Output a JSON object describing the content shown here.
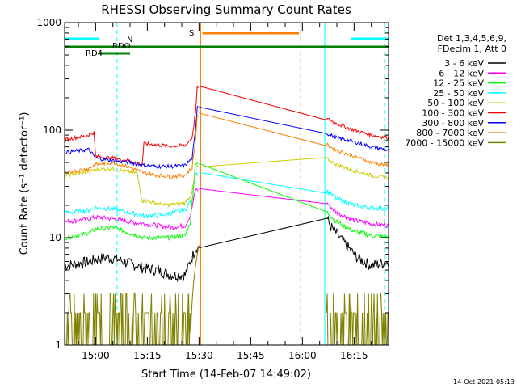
{
  "chart_data": {
    "type": "line",
    "title": "RHESSI Observing Summary Count Rates",
    "xlabel": "Start Time (14-Feb-07 14:49:02)",
    "ylabel": "Count Rate (s⁻¹ detector⁻¹)",
    "yscale": "log",
    "ylim": [
      1,
      1000
    ],
    "xlim_min": [
      -9,
      85
    ],
    "y_ticks": [
      {
        "value": 1,
        "label": "1"
      },
      {
        "value": 10,
        "label": "10"
      },
      {
        "value": 100,
        "label": "100"
      },
      {
        "value": 1000,
        "label": "1000"
      }
    ],
    "x_ticks": [
      {
        "value": 0,
        "label": "15:00"
      },
      {
        "value": 15,
        "label": "15:15"
      },
      {
        "value": 30,
        "label": "15:30"
      },
      {
        "value": 45,
        "label": "15:45"
      },
      {
        "value": 60,
        "label": "16:00"
      },
      {
        "value": 75,
        "label": "16:15"
      }
    ],
    "legend_header": [
      "Det 1,3,4,5,6,9,",
      "FDecim 1, Att 0"
    ],
    "data_gap_min": [
      30,
      67
    ],
    "series": [
      {
        "name": "3 - 6 keV",
        "color": "#000000",
        "noise": 0.12,
        "x": [
          -9,
          -2,
          2,
          5,
          8,
          12,
          14,
          18,
          22,
          26,
          27.5,
          29,
          66.5,
          68,
          72,
          76,
          80,
          85
        ],
        "y": [
          5.5,
          6,
          6.5,
          6.5,
          6,
          5.5,
          5.2,
          5,
          4.5,
          4.5,
          6,
          8,
          17,
          13,
          9,
          6.5,
          5.5,
          6
        ]
      },
      {
        "name": "6 - 12 keV",
        "color": "#ff00ff",
        "noise": 0.05,
        "x": [
          -9,
          -2,
          0,
          5,
          10,
          14,
          18,
          22,
          26,
          27.5,
          29,
          66.5,
          70,
          75,
          80,
          85
        ],
        "y": [
          14,
          15,
          15.5,
          15,
          14,
          13.5,
          13,
          12.5,
          13,
          16,
          28,
          22,
          17,
          14.5,
          13.5,
          13
        ]
      },
      {
        "name": "12 - 25 keV",
        "color": "#00ff00",
        "noise": 0.05,
        "x": [
          -9,
          -2,
          0,
          5,
          10,
          14,
          18,
          22,
          26,
          27.5,
          29,
          66.5,
          70,
          75,
          80,
          85
        ],
        "y": [
          10,
          11,
          12,
          12.5,
          11,
          10,
          10,
          10,
          10.5,
          14,
          50,
          18,
          14,
          11.5,
          10.5,
          10
        ]
      },
      {
        "name": "25 - 50 keV",
        "color": "#00ffff",
        "noise": 0.05,
        "x": [
          -9,
          -2,
          0,
          5,
          10,
          14,
          18,
          22,
          26,
          27.5,
          29,
          66.5,
          70,
          75,
          80,
          85
        ],
        "y": [
          17,
          18,
          19,
          18.5,
          17,
          16,
          16,
          17,
          18,
          22,
          40,
          28,
          23,
          20,
          19,
          18.5
        ]
      },
      {
        "name": "50 - 100 keV",
        "color": "#cccc00",
        "noise": 0.04,
        "x": [
          -9,
          -4,
          0,
          4,
          8,
          12,
          13.5,
          15,
          20,
          26,
          28,
          29,
          66.5,
          70,
          75,
          80,
          85
        ],
        "y": [
          38,
          40,
          43,
          44,
          42,
          40,
          22,
          22,
          20,
          21,
          26,
          45,
          55,
          48,
          42,
          38,
          36
        ]
      },
      {
        "name": "100 - 300 keV",
        "color": "#ff0000",
        "noise": 0.04,
        "x": [
          -9,
          -3,
          -0.5,
          0,
          5,
          10,
          13.5,
          14,
          18,
          22,
          26,
          28,
          29,
          29.5,
          66.5,
          70,
          75,
          80,
          85
        ],
        "y": [
          82,
          88,
          95,
          57,
          55,
          52,
          48,
          75,
          73,
          71,
          72,
          85,
          150,
          250,
          130,
          115,
          100,
          90,
          85
        ]
      },
      {
        "name": "300 - 800 keV",
        "color": "#0000ff",
        "noise": 0.04,
        "x": [
          -9,
          -2,
          0,
          5,
          10,
          14,
          18,
          22,
          26,
          28,
          29,
          29.5,
          66.5,
          70,
          75,
          80,
          85
        ],
        "y": [
          62,
          66,
          55,
          52,
          50,
          47,
          46,
          46,
          47,
          55,
          100,
          170,
          95,
          85,
          78,
          70,
          65
        ]
      },
      {
        "name": "800 - 7000 keV",
        "color": "#ff8000",
        "noise": 0.04,
        "x": [
          -9,
          -2,
          0,
          5,
          10,
          14,
          18,
          22,
          26,
          28,
          29,
          29.5,
          66.5,
          70,
          75,
          80,
          85
        ],
        "y": [
          40,
          44,
          48,
          50,
          45,
          40,
          38,
          37,
          38,
          45,
          80,
          140,
          75,
          65,
          57,
          50,
          47
        ]
      },
      {
        "name": "7000 - 15000 keV",
        "color": "#808000",
        "noise": 0,
        "x": [],
        "y": []
      }
    ],
    "annotations": [
      {
        "label": "N",
        "color": "#00ffff"
      },
      {
        "label": "RDO",
        "color": "#008000"
      },
      {
        "label": "RD4",
        "color": "#008000"
      },
      {
        "label": "S",
        "color": "#ff8000"
      }
    ],
    "flags": {
      "night": {
        "color": "#00ffff",
        "intervals": [
          [
            -9,
            1
          ],
          [
            74,
            85
          ]
        ]
      },
      "saa": {
        "color": "#ff8000",
        "intervals": [
          [
            31,
            59
          ]
        ]
      },
      "decimation": {
        "color": "#008000",
        "intervals": [
          [
            -9,
            85
          ]
        ]
      },
      "rd4": {
        "color": "#008000",
        "intervals": [
          [
            1,
            10
          ]
        ]
      }
    },
    "vertical_lines": [
      {
        "x": -9,
        "color": "#00ffff",
        "style": "solid"
      },
      {
        "x": 6.2,
        "color": "#00ffff",
        "style": "dashed"
      },
      {
        "x": 30.5,
        "color": "#ff8000",
        "style": "solid"
      },
      {
        "x": 59.5,
        "color": "#ff8000",
        "style": "dashed"
      },
      {
        "x": 66.5,
        "color": "#00ffff",
        "style": "solid"
      },
      {
        "x": 83.8,
        "color": "#00ffff",
        "style": "dashed"
      }
    ]
  },
  "footer": {
    "date_stamp": "14-Oct-2021 05:13"
  }
}
